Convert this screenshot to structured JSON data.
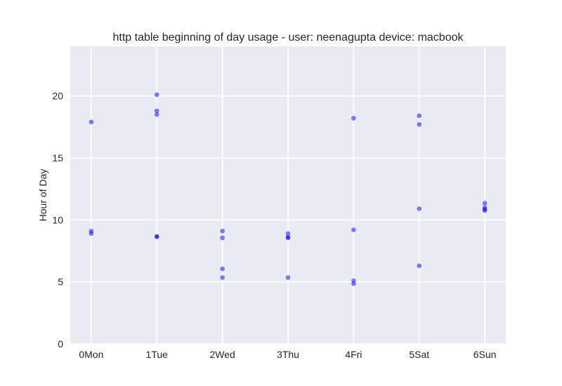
{
  "chart_data": {
    "type": "scatter",
    "title": "http table beginning of day usage -  user: neenagupta device: macbook",
    "xlabel": "",
    "ylabel": "Hour of Day",
    "categories": [
      "0Mon",
      "1Tue",
      "2Wed",
      "3Thu",
      "4Fri",
      "5Sat",
      "6Sun"
    ],
    "xlim": [
      -0.32,
      6.32
    ],
    "ylim": [
      0,
      24
    ],
    "yticks": [
      0,
      5,
      10,
      15,
      20
    ],
    "grid": true,
    "colors": {
      "background": "#eaeaf2",
      "grid": "#ffffff",
      "marker": "#0000ff",
      "marker_opacity": 0.5
    },
    "series": [
      {
        "points": [
          {
            "x": 0,
            "y": 17.9
          },
          {
            "x": 0,
            "y": 9.1
          },
          {
            "x": 0,
            "y": 8.9
          },
          {
            "x": 1,
            "y": 20.1
          },
          {
            "x": 1,
            "y": 18.8
          },
          {
            "x": 1,
            "y": 18.5
          },
          {
            "x": 1,
            "y": 8.65
          },
          {
            "x": 1,
            "y": 8.65
          },
          {
            "x": 2,
            "y": 9.1
          },
          {
            "x": 2,
            "y": 8.55
          },
          {
            "x": 2,
            "y": 6.05
          },
          {
            "x": 2,
            "y": 5.35
          },
          {
            "x": 3,
            "y": 8.9
          },
          {
            "x": 3,
            "y": 8.6
          },
          {
            "x": 3,
            "y": 8.55
          },
          {
            "x": 3,
            "y": 5.35
          },
          {
            "x": 4,
            "y": 18.2
          },
          {
            "x": 4,
            "y": 9.2
          },
          {
            "x": 4,
            "y": 5.1
          },
          {
            "x": 4,
            "y": 4.85
          },
          {
            "x": 5,
            "y": 18.4
          },
          {
            "x": 5,
            "y": 17.7
          },
          {
            "x": 5,
            "y": 10.9
          },
          {
            "x": 5,
            "y": 6.3
          },
          {
            "x": 6,
            "y": 11.35
          },
          {
            "x": 6,
            "y": 11.0
          },
          {
            "x": 6,
            "y": 10.85
          },
          {
            "x": 6,
            "y": 10.75
          }
        ]
      }
    ]
  }
}
